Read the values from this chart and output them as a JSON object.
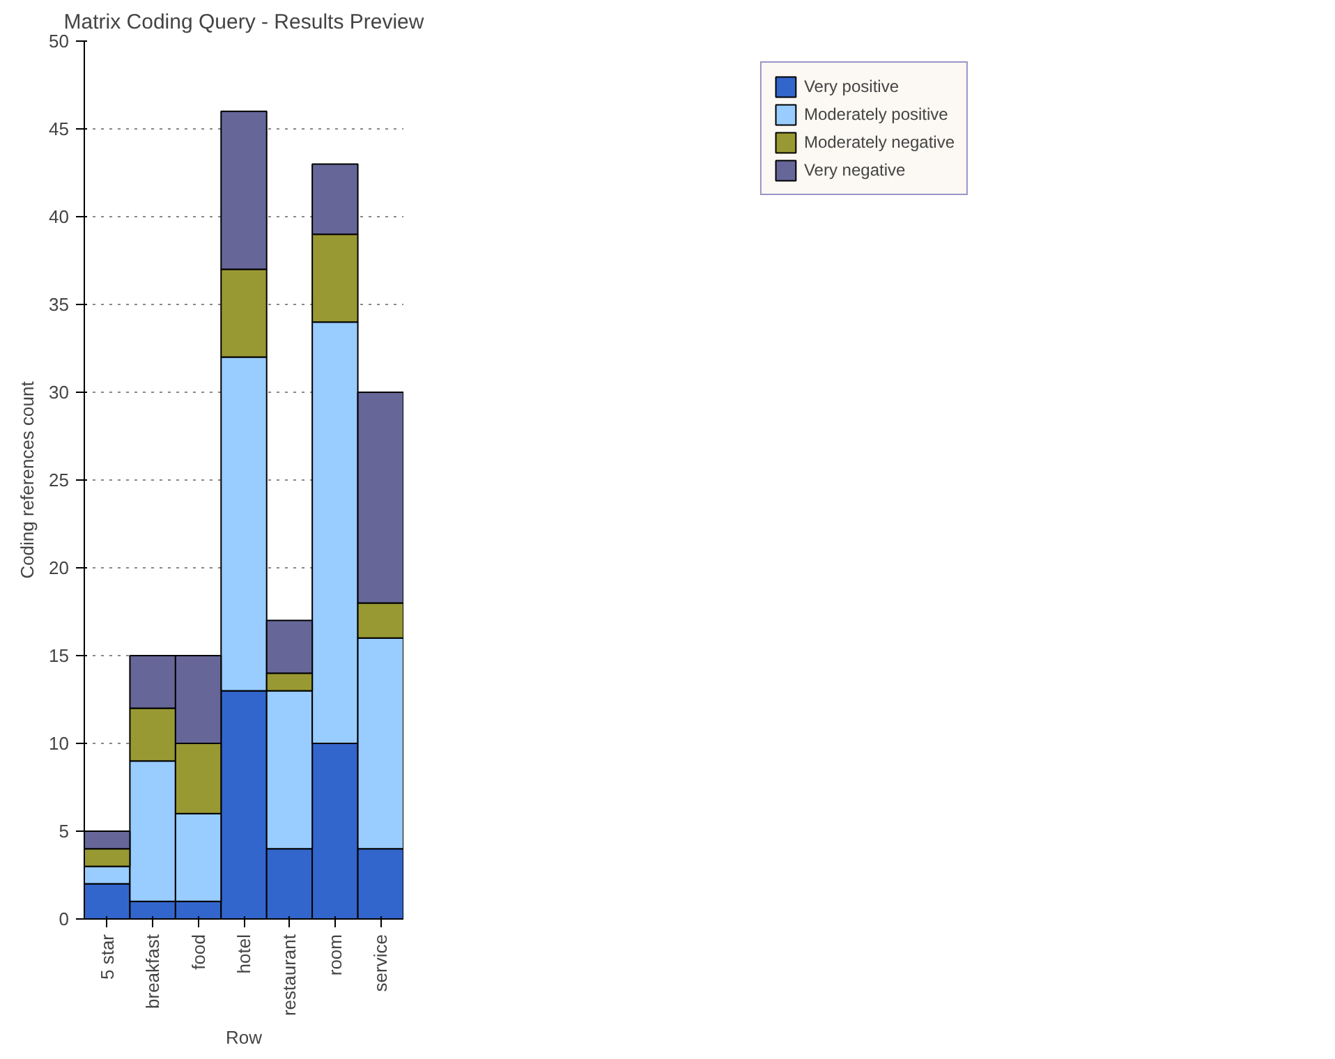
{
  "chart_data": {
    "type": "bar",
    "title": "Matrix Coding Query - Results Preview",
    "xlabel": "Row",
    "ylabel": "Coding references count",
    "categories": [
      "5 star",
      "breakfast",
      "food",
      "hotel",
      "restaurant",
      "room",
      "service"
    ],
    "stacked": true,
    "series": [
      {
        "name": "Very positive",
        "color": "#3366cc",
        "values": [
          2,
          1,
          1,
          13,
          4,
          10,
          4
        ]
      },
      {
        "name": "Moderately positive",
        "color": "#99ccff",
        "values": [
          1,
          8,
          5,
          19,
          9,
          24,
          12
        ]
      },
      {
        "name": "Moderately negative",
        "color": "#999933",
        "values": [
          1,
          3,
          4,
          5,
          1,
          5,
          2
        ]
      },
      {
        "name": "Very negative",
        "color": "#666699",
        "values": [
          1,
          3,
          5,
          9,
          3,
          4,
          12
        ]
      }
    ],
    "ylim": [
      0,
      50
    ],
    "yticks": [
      0,
      5,
      10,
      15,
      20,
      25,
      30,
      35,
      40,
      45,
      50
    ],
    "grid": "y",
    "legend": "top right"
  }
}
